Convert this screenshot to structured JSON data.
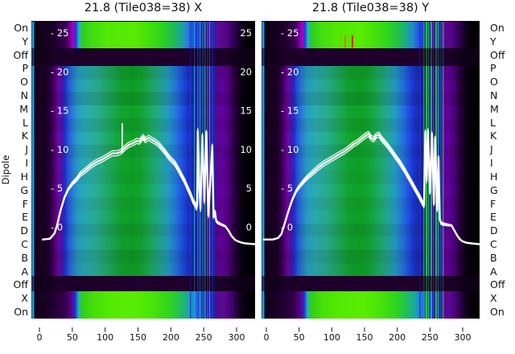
{
  "titles": {
    "left": "21.8 (Tile038=38) X",
    "right": "21.8 (Tile038=38) Y"
  },
  "ylabel": "Dipole",
  "row_labels": [
    "On",
    "Y",
    "Off",
    "P",
    "O",
    "N",
    "M",
    "L",
    "K",
    "J",
    "I",
    "H",
    "G",
    "F",
    "E",
    "D",
    "C",
    "B",
    "A",
    "Off",
    "X",
    "On"
  ],
  "x_ticks": [
    0,
    50,
    100,
    150,
    200,
    250,
    300
  ],
  "chart_data": {
    "type": "heatmap",
    "description": "Two beam/bandpass heatmaps for Tile038 at 21.8, X and Y polarisation. Rows = dipole states (On, Y, Off, dipoles P..A, Off, X, On); x axis 0-300 (channel); white overlaid traces = bandpass on inner 0-25 scale; vertical stripe anomalies near x=250; two RFI tick marks (orange, red) in the top 'On' row of the Y panel.",
    "x_range": [
      0,
      300
    ],
    "inner_axis": {
      "min": 0,
      "max": 25,
      "ticks": [
        25,
        20,
        15,
        10,
        5,
        0
      ]
    },
    "row_band_levels": [
      {
        "rows": [
          "On",
          "Y"
        ],
        "level": "bright-green-band"
      },
      {
        "rows": [
          "Off"
        ],
        "level": "dark-off-band"
      },
      {
        "rows": [
          "P",
          "O",
          "N",
          "M",
          "L",
          "K",
          "J",
          "I",
          "H",
          "G",
          "F",
          "E",
          "D",
          "C",
          "B",
          "A"
        ],
        "level": "body-gradient"
      },
      {
        "rows": [
          "Off"
        ],
        "level": "dark-off-band"
      },
      {
        "rows": [
          "X",
          "On"
        ],
        "level": "bright-green-band"
      }
    ],
    "panels": [
      {
        "title": "21.8 (Tile038=38) X",
        "right_inner_labels": true,
        "curve": [
          [
            5,
            -1.6
          ],
          [
            16,
            -1.5
          ],
          [
            23,
            -0.8
          ],
          [
            27,
            0.3
          ],
          [
            30,
            1.4
          ],
          [
            33,
            2.4
          ],
          [
            38,
            3.8
          ],
          [
            44,
            4.9
          ],
          [
            50,
            5.6
          ],
          [
            57,
            6.2
          ],
          [
            62,
            6.8
          ],
          [
            70,
            7.3
          ],
          [
            78,
            7.9
          ],
          [
            87,
            8.4
          ],
          [
            95,
            8.7
          ],
          [
            103,
            9.1
          ],
          [
            111,
            9.5
          ],
          [
            118,
            9.5
          ],
          [
            124,
            9.7
          ],
          [
            130,
            10.2
          ],
          [
            136,
            10.6
          ],
          [
            142,
            10.8
          ],
          [
            148,
            11.1
          ],
          [
            152,
            11.0
          ],
          [
            158,
            11.6
          ],
          [
            161,
            11.2
          ],
          [
            166,
            11.5
          ],
          [
            170,
            11.3
          ],
          [
            176,
            11.0
          ],
          [
            182,
            10.6
          ],
          [
            190,
            9.8
          ],
          [
            197,
            9.0
          ],
          [
            206,
            8.2
          ],
          [
            211,
            7.5
          ],
          [
            216,
            6.7
          ],
          [
            221,
            5.9
          ],
          [
            225,
            5.1
          ],
          [
            230,
            4.2
          ],
          [
            234,
            3.3
          ],
          [
            237,
            2.9
          ],
          [
            239,
            2.5
          ],
          [
            240,
            3.0
          ],
          [
            241,
            12.4
          ],
          [
            243,
            5.4
          ],
          [
            245,
            2.3
          ],
          [
            248,
            11.8
          ],
          [
            251,
            3.3
          ],
          [
            254,
            12.2
          ],
          [
            257,
            1.5
          ],
          [
            259,
            4.4
          ],
          [
            263,
            10.5
          ],
          [
            265,
            1.3
          ],
          [
            267,
            2.0
          ],
          [
            269,
            0.8
          ],
          [
            271,
            0.6
          ],
          [
            275,
            0.4
          ],
          [
            283,
            0.1
          ],
          [
            288,
            -0.5
          ],
          [
            292,
            -1.1
          ],
          [
            297,
            -1.6
          ],
          [
            301,
            -1.8
          ],
          [
            308,
            -2.0
          ],
          [
            313,
            -2.1
          ],
          [
            328,
            -2.2
          ]
        ],
        "spike": {
          "x": 126,
          "v_from": 9.6,
          "v_to": 13.4
        },
        "rfi_marks": []
      },
      {
        "title": "21.8 (Tile038=38) Y",
        "right_inner_labels": false,
        "curve": [
          [
            -4,
            -1.6
          ],
          [
            10,
            -1.6
          ],
          [
            18,
            -1.4
          ],
          [
            23,
            -0.9
          ],
          [
            27,
            0.2
          ],
          [
            31,
            1.3
          ],
          [
            35,
            2.4
          ],
          [
            40,
            3.6
          ],
          [
            46,
            4.7
          ],
          [
            52,
            5.4
          ],
          [
            58,
            6.0
          ],
          [
            65,
            6.6
          ],
          [
            72,
            7.1
          ],
          [
            80,
            7.7
          ],
          [
            88,
            8.2
          ],
          [
            96,
            8.6
          ],
          [
            104,
            9.0
          ],
          [
            112,
            9.4
          ],
          [
            120,
            9.8
          ],
          [
            128,
            10.3
          ],
          [
            134,
            10.7
          ],
          [
            140,
            11.0
          ],
          [
            146,
            11.4
          ],
          [
            152,
            11.8
          ],
          [
            156,
            12.0
          ],
          [
            160,
            11.5
          ],
          [
            164,
            11.3
          ],
          [
            168,
            11.8
          ],
          [
            172,
            11.9
          ],
          [
            176,
            11.4
          ],
          [
            180,
            11.0
          ],
          [
            186,
            10.4
          ],
          [
            192,
            9.7
          ],
          [
            198,
            9.0
          ],
          [
            204,
            8.3
          ],
          [
            210,
            7.5
          ],
          [
            216,
            6.6
          ],
          [
            222,
            5.7
          ],
          [
            228,
            4.8
          ],
          [
            234,
            3.9
          ],
          [
            238,
            3.2
          ],
          [
            241,
            2.8
          ],
          [
            243,
            12.2
          ],
          [
            245,
            6.0
          ],
          [
            247,
            12.4
          ],
          [
            250,
            4.5
          ],
          [
            253,
            12.0
          ],
          [
            256,
            3.0
          ],
          [
            258,
            11.5
          ],
          [
            261,
            2.2
          ],
          [
            263,
            9.0
          ],
          [
            265,
            1.0
          ],
          [
            267,
            0.5
          ],
          [
            270,
            0.4
          ],
          [
            276,
            0.3
          ],
          [
            283,
            0.2
          ],
          [
            287,
            -0.4
          ],
          [
            291,
            -1.0
          ],
          [
            295,
            -1.5
          ],
          [
            299,
            -1.8
          ],
          [
            305,
            -2.0
          ],
          [
            313,
            -2.1
          ],
          [
            326,
            -2.2
          ]
        ],
        "spike": null,
        "rfi_marks": [
          {
            "offset": 103,
            "color": "#dd7700"
          },
          {
            "offset": 112,
            "color": "#ee1100"
          }
        ]
      }
    ],
    "style": {
      "curve_color": "#ffffff",
      "tick_color": "#111111",
      "inner_label_color": "#ffffff",
      "edge_line_color": "#1fa6d8",
      "dark_dim_color": "#16001f",
      "gradients": {
        "bright_top": [
          [
            0,
            "#0a0012"
          ],
          [
            0.1,
            "#1c0028"
          ],
          [
            0.155,
            "#3a0052"
          ],
          [
            0.175,
            "#7a00a0"
          ],
          [
            0.188,
            "#b100c0"
          ],
          [
            0.198,
            "#2233dd"
          ],
          [
            0.212,
            "#1fb4c8"
          ],
          [
            0.228,
            "#2ecb22"
          ],
          [
            0.27,
            "#3fdd12"
          ],
          [
            0.34,
            "#52e805"
          ],
          [
            0.46,
            "#58ea02"
          ],
          [
            0.52,
            "#44e20a"
          ],
          [
            0.58,
            "#2ed41c"
          ],
          [
            0.63,
            "#1fc04c"
          ],
          [
            0.665,
            "#1aa98c"
          ],
          [
            0.695,
            "#2388d0"
          ],
          [
            0.72,
            "#2255e2"
          ],
          [
            0.745,
            "#1b35c8"
          ],
          [
            0.77,
            "#2a1f9a"
          ],
          [
            0.8,
            "#4a0f8a"
          ],
          [
            0.83,
            "#5c0a96"
          ],
          [
            0.87,
            "#54058a"
          ],
          [
            0.9,
            "#38015c"
          ],
          [
            0.93,
            "#16002a"
          ],
          [
            0.96,
            "#050008"
          ],
          [
            1,
            "#000000"
          ]
        ],
        "bright_bottom": [
          [
            0,
            "#0a0012"
          ],
          [
            0.09,
            "#1e002c"
          ],
          [
            0.15,
            "#34004c"
          ],
          [
            0.175,
            "#5a0080"
          ],
          [
            0.196,
            "#2a2ad0"
          ],
          [
            0.21,
            "#20b0c0"
          ],
          [
            0.226,
            "#30cc18"
          ],
          [
            0.28,
            "#46e008"
          ],
          [
            0.36,
            "#55ea02"
          ],
          [
            0.47,
            "#58ec02"
          ],
          [
            0.55,
            "#46e20a"
          ],
          [
            0.62,
            "#2ed41e"
          ],
          [
            0.67,
            "#20bc60"
          ],
          [
            0.7,
            "#1aaa9a"
          ],
          [
            0.725,
            "#2288d4"
          ],
          [
            0.75,
            "#2158e8"
          ],
          [
            0.775,
            "#1b30cc"
          ],
          [
            0.8,
            "#281ca0"
          ],
          [
            0.83,
            "#500c8c"
          ],
          [
            0.86,
            "#5c0a96"
          ],
          [
            0.895,
            "#44026e"
          ],
          [
            0.925,
            "#1c0030"
          ],
          [
            0.955,
            "#060009"
          ],
          [
            1,
            "#000000"
          ]
        ],
        "body": [
          [
            0,
            "#16001e"
          ],
          [
            0.07,
            "#1c0026"
          ],
          [
            0.09,
            "#33004a"
          ],
          [
            0.105,
            "#56007e"
          ],
          [
            0.122,
            "#6d0b9e"
          ],
          [
            0.135,
            "#4a14b4"
          ],
          [
            0.15,
            "#1f30cc"
          ],
          [
            0.165,
            "#2858dc"
          ],
          [
            0.185,
            "#2a7cd4"
          ],
          [
            0.21,
            "#28a0c4"
          ],
          [
            0.25,
            "#2aacae"
          ],
          [
            0.3,
            "#28ac8e"
          ],
          [
            0.35,
            "#1ea95e"
          ],
          [
            0.4,
            "#12a432"
          ],
          [
            0.45,
            "#0fa226"
          ],
          [
            0.49,
            "#12a532"
          ],
          [
            0.53,
            "#1caa5a"
          ],
          [
            0.57,
            "#22a88c"
          ],
          [
            0.61,
            "#249cc0"
          ],
          [
            0.645,
            "#2478dc"
          ],
          [
            0.675,
            "#2050e4"
          ],
          [
            0.7,
            "#1b35cc"
          ],
          [
            0.73,
            "#1826a8"
          ],
          [
            0.755,
            "#181e88"
          ],
          [
            0.78,
            "#201a74"
          ],
          [
            0.8,
            "#3c1080"
          ],
          [
            0.825,
            "#5a0696"
          ],
          [
            0.855,
            "#64029e"
          ],
          [
            0.885,
            "#4c0278"
          ],
          [
            0.91,
            "#280040"
          ],
          [
            0.935,
            "#0e0016"
          ],
          [
            0.96,
            "#020004"
          ],
          [
            1,
            "#000000"
          ]
        ],
        "dark": [
          [
            0,
            "#0c0010"
          ],
          [
            0.08,
            "#16001f"
          ],
          [
            0.1,
            "#240032"
          ],
          [
            0.3,
            "#2c003c"
          ],
          [
            0.5,
            "#300042"
          ],
          [
            0.7,
            "#2c003c"
          ],
          [
            0.88,
            "#240030"
          ],
          [
            0.905,
            "#12001a"
          ],
          [
            0.94,
            "#05000a"
          ],
          [
            1,
            "#000000"
          ]
        ]
      },
      "body_row_shade": [
        0.1,
        0.03,
        0.12,
        0.0,
        0.07,
        0.0,
        0.08,
        0.02,
        0.05,
        0.0,
        0.06,
        0.02,
        0.1,
        0.04,
        0.12,
        0.07
      ],
      "stripes": [
        [
          {
            "o": 197,
            "w": 1.5,
            "c": "#2336cc",
            "a": 0.8
          },
          {
            "o": 202,
            "w": 1.2,
            "c": "#1db0d8",
            "a": 0.85
          },
          {
            "o": 206,
            "w": 2,
            "c": "#2a50ee",
            "a": 0.95
          },
          {
            "o": 209,
            "w": 1.2,
            "c": "#23c08c",
            "a": 0.9
          },
          {
            "o": 212,
            "w": 2,
            "c": "#2a44e4",
            "a": 0.95
          },
          {
            "o": 215,
            "w": 1.4,
            "c": "#28b858",
            "a": 0.9
          },
          {
            "o": 218,
            "w": 2,
            "c": "#2440ea",
            "a": 0.95
          },
          {
            "o": 221,
            "w": 1.2,
            "c": "#1fb4cc",
            "a": 0.9
          },
          {
            "o": 224,
            "w": 2,
            "c": "#2338d2",
            "a": 0.95
          },
          {
            "o": 227,
            "w": 1.4,
            "c": "#1c2cae",
            "a": 0.9
          }
        ],
        [
          {
            "o": 196,
            "w": 1.5,
            "c": "#2336cc",
            "a": 0.8
          },
          {
            "o": 201,
            "w": 1.5,
            "c": "#22b040",
            "a": 0.9
          },
          {
            "o": 204,
            "w": 2,
            "c": "#28c838",
            "a": 0.95
          },
          {
            "o": 207,
            "w": 1.3,
            "c": "#1fb4b0",
            "a": 0.9
          },
          {
            "o": 210,
            "w": 2,
            "c": "#24c040",
            "a": 0.95
          },
          {
            "o": 213,
            "w": 1.4,
            "c": "#2a44e0",
            "a": 0.9
          },
          {
            "o": 216,
            "w": 2,
            "c": "#26c444",
            "a": 0.95
          },
          {
            "o": 219,
            "w": 1.3,
            "c": "#1fb0cc",
            "a": 0.9
          },
          {
            "o": 222,
            "w": 2,
            "c": "#2338d2",
            "a": 0.9
          },
          {
            "o": 225,
            "w": 1.4,
            "c": "#20bc50",
            "a": 0.9
          }
        ]
      ]
    }
  }
}
